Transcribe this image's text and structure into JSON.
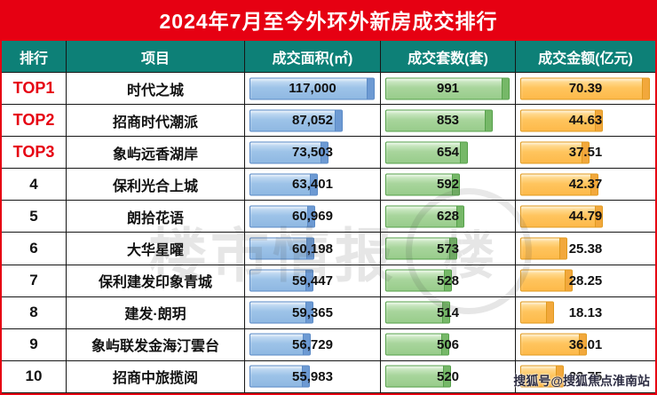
{
  "title": "2024年7月至今外环外新房成交排行",
  "columns": {
    "rank": "排行",
    "project": "项目",
    "area": "成交面积(㎡)",
    "units": "成交套数(套)",
    "amount": "成交金额(亿元)"
  },
  "colors": {
    "title_bg": "#e60012",
    "header_bg": "#0d8077",
    "top_rank_red": "#e60012",
    "area_bar": "#9dc3e8",
    "units_bar": "#a8d59c",
    "amount_bar": "#ffc55e"
  },
  "max": {
    "area": 117000,
    "units": 991,
    "amount": 70.39
  },
  "rows": [
    {
      "rank": "TOP1",
      "top": true,
      "project": "时代之城",
      "area": 117000,
      "area_label": "117,000",
      "units": 991,
      "amount": 70.39,
      "amount_label": "70.39"
    },
    {
      "rank": "TOP2",
      "top": true,
      "project": "招商时代潮派",
      "area": 87052,
      "area_label": "87,052",
      "units": 853,
      "amount": 44.63,
      "amount_label": "44.63"
    },
    {
      "rank": "TOP3",
      "top": true,
      "project": "象屿远香湖岸",
      "area": 73503,
      "area_label": "73,503",
      "units": 654,
      "amount": 37.51,
      "amount_label": "37.51"
    },
    {
      "rank": "4",
      "top": false,
      "project": "保利光合上城",
      "area": 63401,
      "area_label": "63,401",
      "units": 592,
      "amount": 42.37,
      "amount_label": "42.37"
    },
    {
      "rank": "5",
      "top": false,
      "project": "朗拾花语",
      "area": 60969,
      "area_label": "60,969",
      "units": 628,
      "amount": 44.79,
      "amount_label": "44.79"
    },
    {
      "rank": "6",
      "top": false,
      "project": "大华星曜",
      "area": 60198,
      "area_label": "60,198",
      "units": 573,
      "amount": 25.38,
      "amount_label": "25.38"
    },
    {
      "rank": "7",
      "top": false,
      "project": "保利建发印象青城",
      "area": 59447,
      "area_label": "59,447",
      "units": 528,
      "amount": 28.25,
      "amount_label": "28.25"
    },
    {
      "rank": "8",
      "top": false,
      "project": "建发·朗玥",
      "area": 59365,
      "area_label": "59,365",
      "units": 514,
      "amount": 18.13,
      "amount_label": "18.13"
    },
    {
      "rank": "9",
      "top": false,
      "project": "象屿联发金海汀雲台",
      "area": 56729,
      "area_label": "56,729",
      "units": 506,
      "amount": 36.01,
      "amount_label": "36.01"
    },
    {
      "rank": "10",
      "top": false,
      "project": "招商中旅揽阅",
      "area": 55983,
      "area_label": "55,983",
      "units": 520,
      "amount": 23.75,
      "amount_label": "23.75"
    }
  ],
  "watermark": {
    "stamp_text": "楼市情报",
    "stamp_char": "楼",
    "byline": "搜狐号@搜狐焦点淮南站"
  },
  "chart_data": {
    "type": "table",
    "title": "2024年7月至今外环外新房成交排行",
    "columns": [
      "排行",
      "项目",
      "成交面积(㎡)",
      "成交套数(套)",
      "成交金额(亿元)"
    ],
    "ranks": [
      "TOP1",
      "TOP2",
      "TOP3",
      "4",
      "5",
      "6",
      "7",
      "8",
      "9",
      "10"
    ],
    "categories": [
      "时代之城",
      "招商时代潮派",
      "象屿远香湖岸",
      "保利光合上城",
      "朗拾花语",
      "大华星曜",
      "保利建发印象青城",
      "建发·朗玥",
      "象屿联发金海汀雲台",
      "招商中旅揽阅"
    ],
    "series": [
      {
        "name": "成交面积(㎡)",
        "values": [
          117000,
          87052,
          73503,
          63401,
          60969,
          60198,
          59447,
          59365,
          56729,
          55983
        ]
      },
      {
        "name": "成交套数(套)",
        "values": [
          991,
          853,
          654,
          592,
          628,
          573,
          528,
          514,
          506,
          520
        ]
      },
      {
        "name": "成交金额(亿元)",
        "values": [
          70.39,
          44.63,
          37.51,
          42.37,
          44.79,
          25.38,
          28.25,
          18.13,
          36.01,
          23.75
        ]
      }
    ],
    "layout": {
      "bars_in_cells": true,
      "bar_scale": "linear from 0 to column max"
    }
  }
}
